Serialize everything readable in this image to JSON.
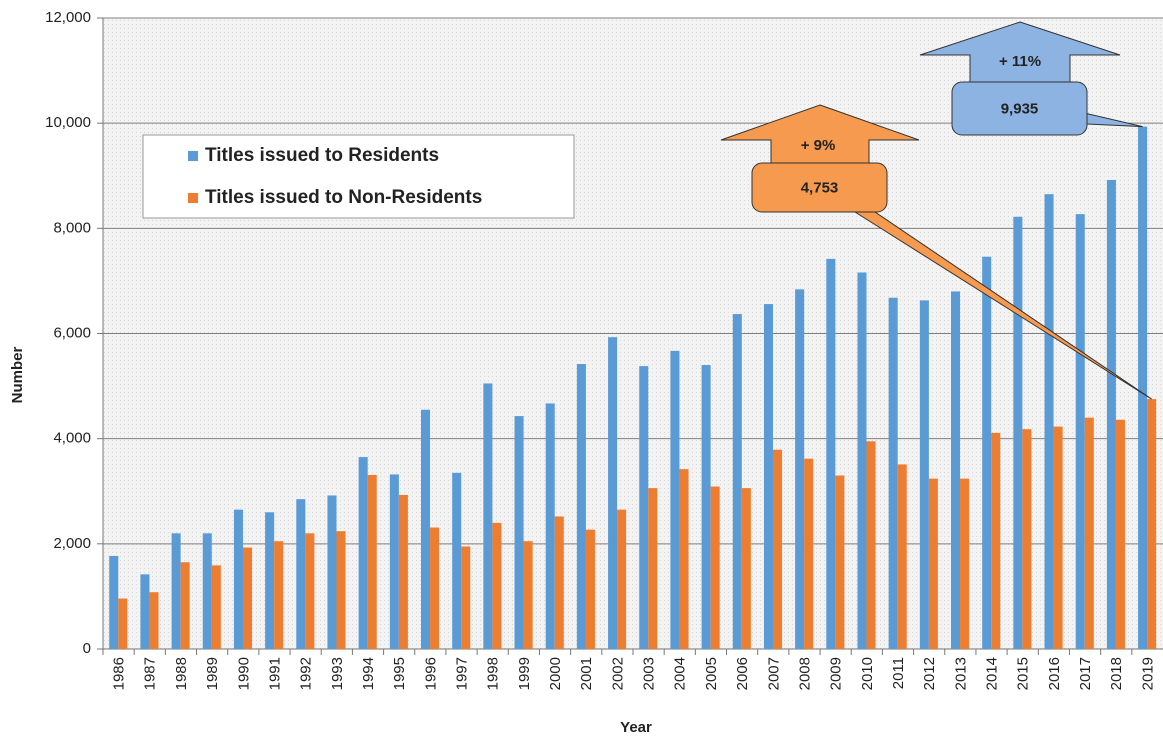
{
  "chart_data": {
    "type": "bar",
    "x_label": "Year",
    "y_label": "Number",
    "categories": [
      "1986",
      "1987",
      "1988",
      "1989",
      "1990",
      "1991",
      "1992",
      "1993",
      "1994",
      "1995",
      "1996",
      "1997",
      "1998",
      "1999",
      "2000",
      "2001",
      "2002",
      "2003",
      "2004",
      "2005",
      "2006",
      "2007",
      "2008",
      "2009",
      "2010",
      "2011",
      "2012",
      "2013",
      "2014",
      "2015",
      "2016",
      "2017",
      "2018",
      "2019"
    ],
    "series": [
      {
        "name": "Titles issued to Residents",
        "color": "#5b9bd5",
        "values": [
          1770,
          1420,
          2200,
          2200,
          2650,
          2600,
          2850,
          2920,
          3650,
          3320,
          4550,
          3350,
          5050,
          4430,
          4670,
          5420,
          5930,
          5380,
          5670,
          5400,
          6370,
          6560,
          6840,
          7420,
          7160,
          6680,
          6630,
          6800,
          7460,
          8220,
          8650,
          8270,
          8920,
          9935
        ],
        "value_labels": [
          null,
          null,
          null,
          null,
          null,
          null,
          null,
          null,
          null,
          null,
          null,
          null,
          null,
          null,
          null,
          null,
          null,
          null,
          null,
          null,
          null,
          null,
          null,
          null,
          null,
          null,
          null,
          null,
          null,
          null,
          null,
          null,
          null,
          "9,935"
        ]
      },
      {
        "name": "Titles issued to Non-Residents",
        "color": "#ed7d31",
        "values": [
          960,
          1080,
          1650,
          1590,
          1930,
          2050,
          2200,
          2240,
          3310,
          2930,
          2310,
          1950,
          2400,
          2050,
          2520,
          2270,
          2650,
          3060,
          3420,
          3090,
          3060,
          3790,
          3620,
          3300,
          3950,
          3510,
          3240,
          3240,
          4110,
          4180,
          4230,
          4400,
          4360,
          4753
        ],
        "value_labels": [
          null,
          null,
          null,
          null,
          null,
          null,
          null,
          null,
          null,
          null,
          null,
          null,
          null,
          null,
          null,
          null,
          null,
          null,
          null,
          null,
          null,
          null,
          null,
          null,
          null,
          null,
          null,
          null,
          null,
          null,
          null,
          null,
          null,
          "4,753"
        ]
      }
    ],
    "annotations": [
      "+ 11%",
      "+ 9%"
    ],
    "ylim": [
      0,
      12000
    ],
    "yticks": [
      0,
      {
        "value": 2000,
        "label": "2,000"
      },
      {
        "value": 4000,
        "label": "4,000"
      },
      {
        "value": 6000,
        "label": "6,000"
      },
      {
        "value": 8000,
        "label": "8,000"
      },
      {
        "value": 10000,
        "label": "10,000"
      },
      {
        "value": 12000,
        "label": "12,000"
      }
    ],
    "grid": true,
    "legend": "upper left"
  }
}
